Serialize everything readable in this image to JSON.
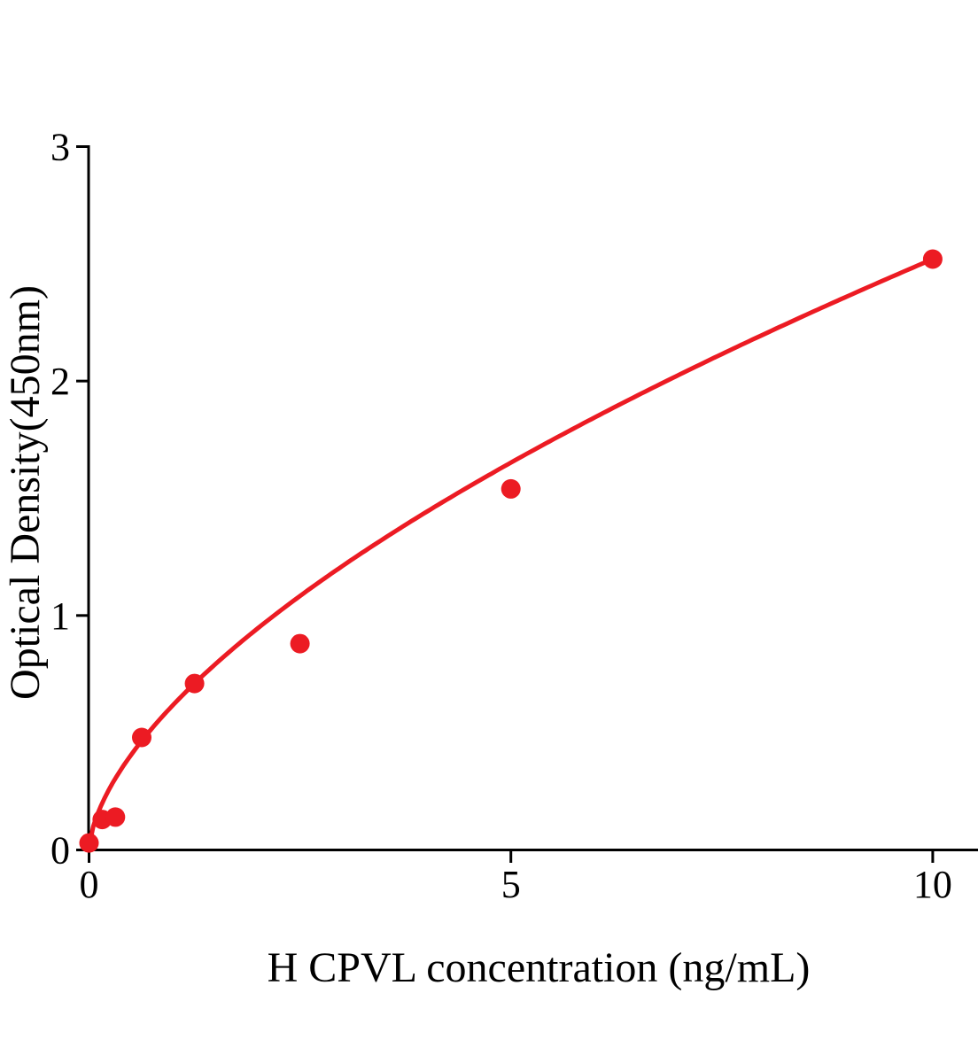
{
  "figure": {
    "background": "#ffffff",
    "accent_color": "#EC1B23",
    "axis_color": "#000000"
  },
  "chart_data": {
    "type": "scatter",
    "title": "",
    "xlabel": "H CPVL concentration (ng/mL)",
    "ylabel": "Optical Density(450nm)",
    "x_ticks": [
      0,
      5,
      10
    ],
    "y_ticks": [
      0,
      1,
      2,
      3
    ],
    "xlim": [
      0,
      10.55
    ],
    "ylim": [
      0,
      3
    ],
    "grid": false,
    "legend_position": "none",
    "series": [
      {
        "name": "H CPVL standard curve",
        "marker": "circle",
        "marker_color": "#EC1B23",
        "line_color": "#EC1B23",
        "fit_type": "power",
        "points": [
          {
            "x": 0,
            "y": 0.03
          },
          {
            "x": 0.156,
            "y": 0.13
          },
          {
            "x": 0.313,
            "y": 0.14
          },
          {
            "x": 0.625,
            "y": 0.48
          },
          {
            "x": 1.25,
            "y": 0.71
          },
          {
            "x": 2.5,
            "y": 0.88
          },
          {
            "x": 5,
            "y": 1.54
          },
          {
            "x": 10,
            "y": 2.52
          }
        ]
      }
    ]
  }
}
